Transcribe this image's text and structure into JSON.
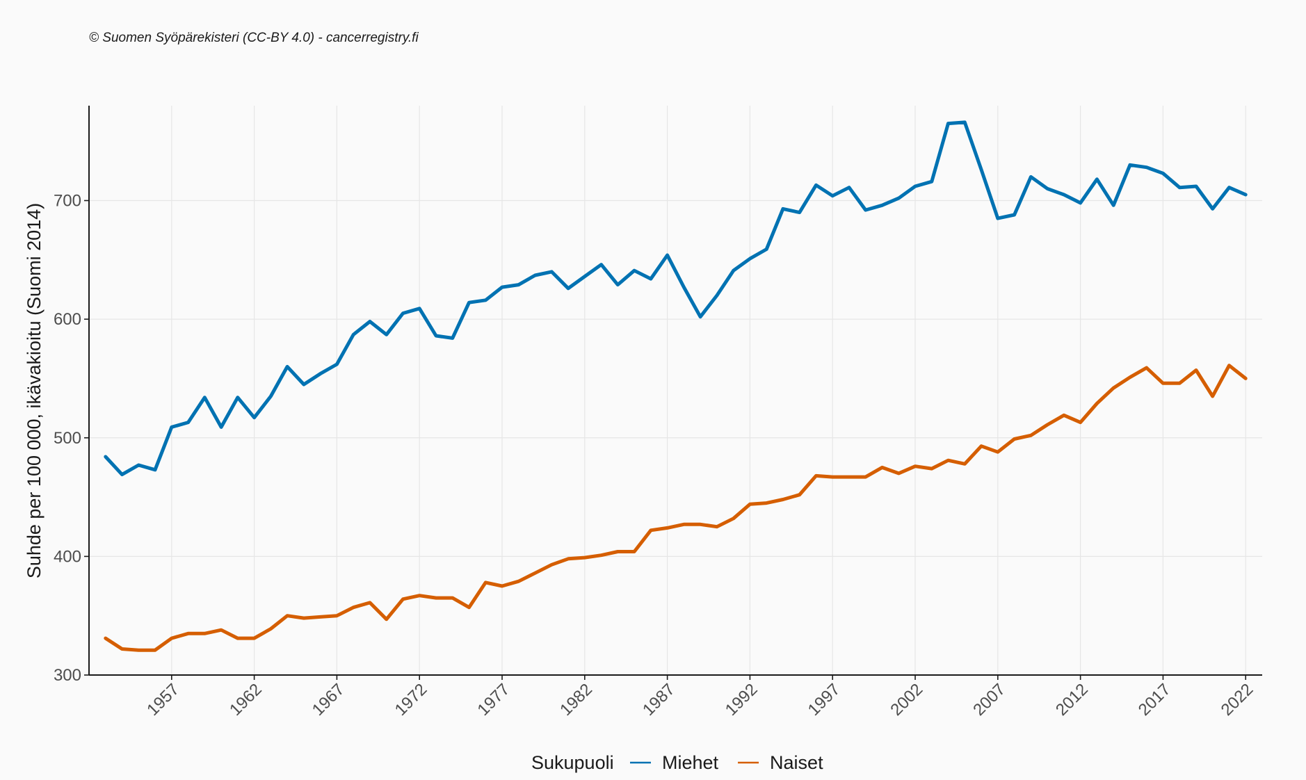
{
  "caption": "© Suomen Syöpärekisteri (CC-BY 4.0) - cancerregistry.fi",
  "chart_data": {
    "type": "line",
    "title": "",
    "xlabel": "",
    "ylabel": "Suhde per 100 000, ikävakioitu (Suomi 2014)",
    "xlim": [
      1952,
      2023
    ],
    "ylim": [
      300,
      780
    ],
    "x_ticks": [
      1957,
      1962,
      1967,
      1972,
      1977,
      1982,
      1987,
      1992,
      1997,
      2002,
      2007,
      2012,
      2017,
      2022
    ],
    "y_ticks": [
      300,
      400,
      500,
      600,
      700
    ],
    "grid": true,
    "legend_title": "Sukupuoli",
    "legend_position": "bottom",
    "x": [
      1953,
      1954,
      1955,
      1956,
      1957,
      1958,
      1959,
      1960,
      1961,
      1962,
      1963,
      1964,
      1965,
      1966,
      1967,
      1968,
      1969,
      1970,
      1971,
      1972,
      1973,
      1974,
      1975,
      1976,
      1977,
      1978,
      1979,
      1980,
      1981,
      1982,
      1983,
      1984,
      1985,
      1986,
      1987,
      1988,
      1989,
      1990,
      1991,
      1992,
      1993,
      1994,
      1995,
      1996,
      1997,
      1998,
      1999,
      2000,
      2001,
      2002,
      2003,
      2004,
      2005,
      2006,
      2007,
      2008,
      2009,
      2010,
      2011,
      2012,
      2013,
      2014,
      2015,
      2016,
      2017,
      2018,
      2019,
      2020,
      2021,
      2022
    ],
    "series": [
      {
        "name": "Miehet",
        "color": "#0072b2",
        "values": [
          484,
          469,
          477,
          473,
          509,
          513,
          534,
          509,
          534,
          517,
          535,
          560,
          545,
          554,
          562,
          587,
          598,
          587,
          605,
          609,
          586,
          584,
          614,
          616,
          627,
          629,
          637,
          640,
          626,
          636,
          646,
          629,
          641,
          634,
          654,
          627,
          602,
          620,
          641,
          651,
          659,
          693,
          690,
          713,
          704,
          711,
          692,
          696,
          702,
          712,
          716,
          765,
          766,
          726,
          685,
          688,
          720,
          710,
          705,
          698,
          718,
          696,
          730,
          728,
          723,
          711,
          712,
          693,
          711,
          705
        ]
      },
      {
        "name": "Naiset",
        "color": "#d55e00",
        "values": [
          331,
          322,
          321,
          321,
          331,
          335,
          335,
          338,
          331,
          331,
          339,
          350,
          348,
          349,
          350,
          357,
          361,
          347,
          364,
          367,
          365,
          365,
          357,
          378,
          375,
          379,
          386,
          393,
          398,
          399,
          401,
          404,
          404,
          422,
          424,
          427,
          427,
          425,
          432,
          444,
          445,
          448,
          452,
          468,
          467,
          467,
          467,
          475,
          470,
          476,
          474,
          481,
          478,
          493,
          488,
          499,
          502,
          511,
          519,
          513,
          529,
          542,
          551,
          559,
          546,
          546,
          557,
          535,
          561,
          550
        ]
      }
    ]
  }
}
